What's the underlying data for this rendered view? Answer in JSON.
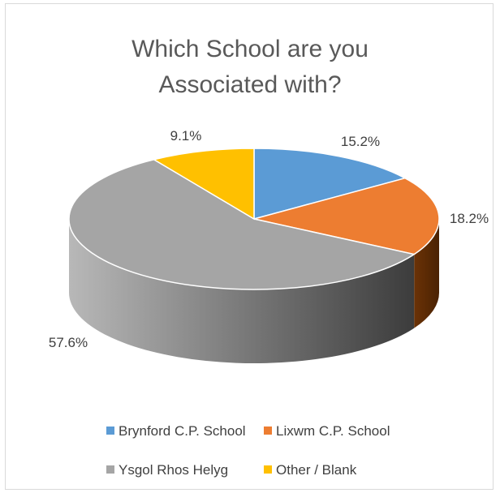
{
  "chart_data": {
    "type": "pie",
    "title_lines": [
      "Which School are you",
      "Associated with?"
    ],
    "categories": [
      "Brynford C.P. School",
      "Lixwm C.P. School",
      "Ysgol Rhos Helyg",
      "Other / Blank"
    ],
    "values": [
      15.2,
      18.2,
      57.6,
      9.1
    ],
    "labels": [
      "15.2%",
      "18.2%",
      "57.6%",
      "9.1%"
    ],
    "colors": [
      "#5b9bd5",
      "#ed7d31",
      "#a5a5a5",
      "#ffc000"
    ],
    "legend_position": "bottom",
    "style": "3d"
  }
}
